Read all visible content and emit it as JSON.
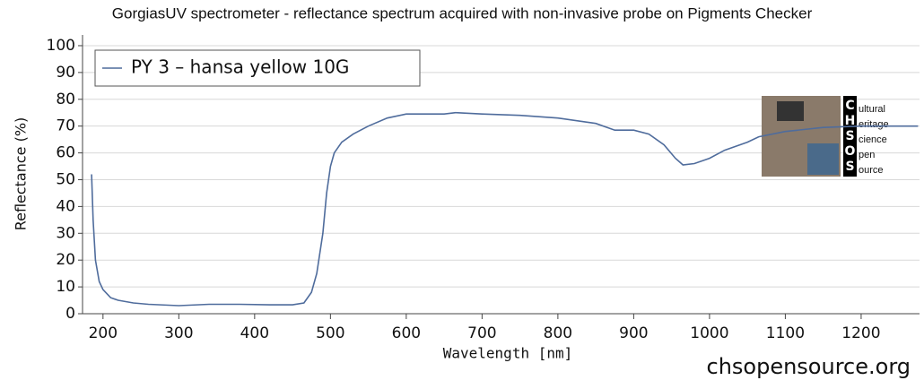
{
  "chart_data": {
    "type": "line",
    "title": "GorgiasUV spectrometer - reflectance spectrum acquired with non-invasive probe on Pigments Checker",
    "x_label": "Wavelength [nm]",
    "y_label": "Reflectance (%)",
    "x": [
      185,
      187,
      190,
      195,
      200,
      210,
      220,
      240,
      260,
      300,
      340,
      380,
      420,
      450,
      465,
      475,
      482,
      490,
      495,
      500,
      505,
      515,
      530,
      550,
      575,
      600,
      650,
      665,
      700,
      750,
      800,
      850,
      875,
      900,
      920,
      940,
      955,
      965,
      980,
      1000,
      1020,
      1050,
      1065,
      1100,
      1150,
      1200,
      1250,
      1275
    ],
    "series": [
      {
        "name": "PY 3 – hansa yellow 10G",
        "color": "#4f6c9c",
        "values": [
          52,
          35,
          20,
          12,
          9,
          6,
          5,
          4,
          3.5,
          3,
          3.5,
          3.5,
          3.3,
          3.3,
          4,
          8,
          15,
          30,
          45,
          55,
          60,
          64,
          67,
          70,
          73,
          74.5,
          74.5,
          75,
          74.5,
          74,
          73,
          71,
          68.5,
          68.5,
          67,
          63,
          58,
          55.5,
          56,
          58,
          61,
          64,
          66,
          68,
          69.5,
          70,
          70,
          70
        ]
      }
    ],
    "xlim": [
      173,
      1277
    ],
    "ylim": [
      0,
      104
    ],
    "xticks": [
      200,
      300,
      400,
      500,
      600,
      700,
      800,
      900,
      1000,
      1100,
      1200
    ],
    "yticks": [
      0,
      10,
      20,
      30,
      40,
      50,
      60,
      70,
      80,
      90,
      100
    ],
    "grid": true,
    "legend": "upper left",
    "footer": "chsopensource.org",
    "logo": {
      "letters": [
        "C",
        "H",
        "S",
        "O",
        "S"
      ],
      "words": [
        "ultural",
        "eritage",
        "cience",
        "pen",
        "ource"
      ]
    }
  }
}
